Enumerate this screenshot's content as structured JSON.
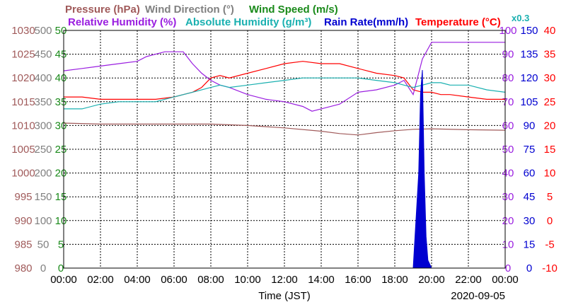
{
  "chart_data": {
    "type": "line",
    "date": "2020-09-05",
    "xlabel": "Time (JST)",
    "x_ticks": [
      "00:00",
      "02:00",
      "04:00",
      "06:00",
      "08:00",
      "10:00",
      "12:00",
      "14:00",
      "16:00",
      "18:00",
      "20:00",
      "22:00",
      "00:00"
    ],
    "x_range_hours": [
      0,
      24
    ],
    "grid": true,
    "legend": {
      "row1": [
        {
          "text": "Pressure (hPa)",
          "color": "#a05a5a"
        },
        {
          "text": "Wind Direction (°)",
          "color": "#808080"
        },
        {
          "text": "Wind Speed (m/s)",
          "color": "#1a8a1a"
        }
      ],
      "row2": [
        {
          "text": "Relative Humidity (%)",
          "color": "#9a1ee0"
        },
        {
          "text": "Absolute Humidity (g/m³)",
          "color": "#1ab0b0"
        },
        {
          "text": "Rain Rate(mm/h)",
          "color": "#0000d0"
        },
        {
          "text": "Temperature (°C)",
          "color": "#ff0000"
        },
        {
          "text": "x0.3",
          "color": "#1ab0b0"
        }
      ]
    },
    "axes": {
      "pressure": {
        "color": "#a05a5a",
        "min": 980,
        "max": 1030,
        "ticks": [
          "1030",
          "1025",
          "1020",
          "1015",
          "1010",
          "1005",
          "1000",
          "995",
          "990",
          "985",
          "980"
        ]
      },
      "wind_direction": {
        "color": "#808080",
        "min": 0,
        "max": 500,
        "ticks": [
          "500",
          "450",
          "400",
          "350",
          "300",
          "250",
          "200",
          "150",
          "100",
          "50",
          "0"
        ]
      },
      "wind_speed": {
        "color": "#1a8a1a",
        "min": 0,
        "max": 50,
        "ticks": [
          "50",
          "45",
          "40",
          "35",
          "30",
          "25",
          "20",
          "15",
          "10",
          "5",
          "0"
        ]
      },
      "humidity": {
        "color": "#9a1ee0",
        "min": 0,
        "max": 100,
        "ticks": [
          "100",
          "90",
          "80",
          "70",
          "60",
          "50",
          "40",
          "30",
          "20",
          "10",
          "0"
        ]
      },
      "rain_rate": {
        "color": "#0000d0",
        "min": 0,
        "max": 150,
        "ticks": [
          "150",
          "135",
          "120",
          "105",
          "90",
          "75",
          "60",
          "45",
          "30",
          "15",
          "0"
        ]
      },
      "temperature": {
        "color": "#ff0000",
        "min": -10,
        "max": 40,
        "ticks": [
          "40",
          "35",
          "30",
          "25",
          "20",
          "15",
          "10",
          "5",
          "0",
          "-5",
          "-10"
        ]
      }
    },
    "series": [
      {
        "name": "Temperature (°C)",
        "axis": "temperature",
        "color": "#ff0000",
        "x": [
          0,
          1,
          2,
          3,
          4,
          5,
          6,
          6.5,
          7,
          7.5,
          8,
          8.5,
          9,
          10,
          11,
          12,
          13,
          14,
          15,
          16,
          17,
          18,
          18.5,
          19,
          19.5,
          20,
          20.5,
          21,
          22,
          23,
          24
        ],
        "y": [
          26,
          26,
          25.5,
          25.5,
          25.5,
          25.5,
          26,
          26.5,
          27,
          28,
          30,
          30.5,
          30,
          31,
          32,
          33,
          33.5,
          33,
          33,
          32,
          31,
          30.5,
          30,
          27.5,
          27,
          27,
          26.5,
          26.5,
          26,
          25.5,
          25.5
        ]
      },
      {
        "name": "Pressure (hPa)",
        "axis": "pressure",
        "color": "#a05a5a",
        "x": [
          0,
          2,
          4,
          6,
          8,
          10,
          12,
          14,
          15,
          16,
          17,
          18,
          19,
          20,
          22,
          24
        ],
        "y": [
          1010.5,
          1010.3,
          1010.3,
          1010.3,
          1010.3,
          1010,
          1009.5,
          1008.8,
          1008.3,
          1008,
          1008.5,
          1008.9,
          1009.2,
          1009.3,
          1009.1,
          1009
        ]
      },
      {
        "name": "Relative Humidity (%)",
        "axis": "humidity",
        "color": "#9a1ee0",
        "x": [
          0,
          1,
          2,
          3,
          4,
          4.5,
          5,
          5.5,
          6,
          6.5,
          7,
          7.5,
          8,
          8.5,
          9,
          10,
          11,
          12,
          13,
          13.5,
          14,
          15,
          16,
          17,
          18,
          18.5,
          19,
          19.5,
          20,
          21,
          22,
          23,
          24
        ],
        "y": [
          83,
          84,
          85,
          86,
          87,
          89,
          90,
          91,
          91,
          91,
          86,
          82,
          79,
          77,
          76,
          73,
          71,
          70,
          68,
          66,
          67,
          69,
          74,
          75,
          77,
          79,
          73,
          88,
          95,
          95,
          95,
          95,
          95
        ]
      },
      {
        "name": "Absolute Humidity (g/m³)",
        "axis": "humidity",
        "color": "#1ab0b0",
        "x": [
          0,
          1,
          2,
          3,
          4,
          5,
          6,
          7,
          8,
          8.5,
          9,
          10,
          11,
          12,
          13,
          14,
          15,
          16,
          17,
          18,
          18.5,
          19,
          19.5,
          20,
          20.5,
          21,
          22,
          23,
          24
        ],
        "y": [
          67,
          67,
          69,
          70,
          70,
          70,
          72,
          74,
          76,
          77,
          76,
          77,
          78,
          79,
          80,
          80,
          80,
          80,
          79,
          78,
          77,
          76,
          77,
          78,
          78,
          77,
          77,
          75,
          74
        ]
      },
      {
        "name": "Rain Rate(mm/h)",
        "axis": "rain_rate",
        "color": "#0000d0",
        "x": [
          0,
          19,
          19.1,
          19.3,
          19.4,
          19.5,
          19.6,
          19.7,
          19.8,
          20,
          24
        ],
        "y": [
          0,
          0,
          20,
          60,
          110,
          125,
          60,
          20,
          5,
          0,
          0
        ]
      }
    ]
  }
}
